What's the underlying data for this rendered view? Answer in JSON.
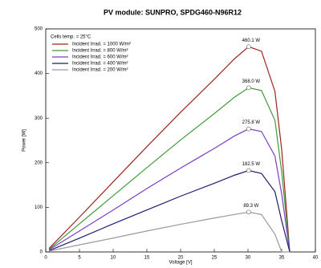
{
  "chart_data": {
    "type": "line",
    "title": "PV module:  SUNPRO,  SPDG460-N96R12",
    "x_label": "Voltage [V]",
    "y_label": "Power [W]",
    "legend_title": "Cells temp. = 25°C",
    "legend": "upper-left",
    "x": [
      0.5,
      5,
      10,
      15,
      20,
      25,
      28,
      30.1,
      32,
      34,
      35,
      36.2
    ],
    "series": [
      {
        "name": "Incident Irrad. = 1000 W/m²",
        "color": "#a0231c",
        "values": [
          8,
          78,
          157,
          236,
          313,
          387,
          433,
          460.1,
          450,
          360,
          230,
          0
        ],
        "value_labels": [
          null,
          null,
          null,
          null,
          null,
          null,
          null,
          "460.1 W",
          null,
          null,
          null,
          null
        ]
      },
      {
        "name": "Incident Irrad. = 800 W/m²",
        "color": "#3f9a3a",
        "values": [
          6,
          63,
          126,
          189,
          251,
          310,
          347,
          368.0,
          362,
          295,
          180,
          0
        ],
        "value_labels": [
          null,
          null,
          null,
          null,
          null,
          null,
          null,
          "368.0 W",
          null,
          null,
          null,
          null
        ]
      },
      {
        "name": "Incident Irrad. = 600 W/m²",
        "color": "#7a3fc4",
        "values": [
          5,
          47,
          94,
          142,
          188,
          232,
          260,
          275.8,
          270,
          215,
          130,
          0
        ],
        "value_labels": [
          null,
          null,
          null,
          null,
          null,
          null,
          null,
          "275.8 W",
          null,
          null,
          null,
          null
        ]
      },
      {
        "name": "Incident Irrad. = 400 W/m²",
        "color": "#1c1f6e",
        "values": [
          3,
          31,
          63,
          94,
          125,
          154,
          172,
          182.5,
          176,
          135,
          70,
          0
        ],
        "value_labels": [
          null,
          null,
          null,
          null,
          null,
          null,
          null,
          "182.5 W",
          null,
          null,
          null,
          null
        ]
      },
      {
        "name": "Incident Irrad. = 200 W/m²",
        "color": "#9a9a9a",
        "values": [
          2,
          16,
          31,
          47,
          62,
          76,
          84,
          89.3,
          84,
          40,
          0,
          0
        ],
        "value_labels": [
          null,
          null,
          null,
          null,
          null,
          null,
          null,
          "89.3 W",
          null,
          null,
          null,
          null
        ]
      }
    ],
    "xlim": [
      0,
      40
    ],
    "xticks": [
      0,
      5,
      10,
      15,
      20,
      25,
      30,
      35,
      40
    ],
    "ylim": [
      0,
      500
    ],
    "yticks": [
      0,
      100,
      200,
      300,
      400,
      500
    ],
    "grid": false
  }
}
